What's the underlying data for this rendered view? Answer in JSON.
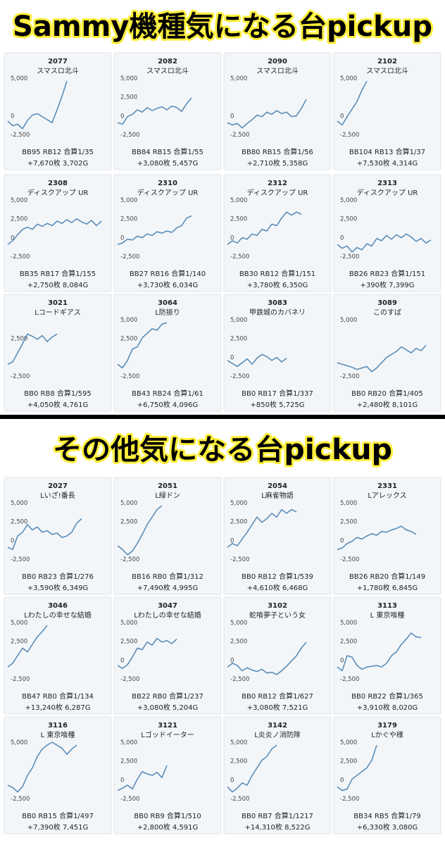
{
  "headings": [
    "Sammy機種気になる台pickup",
    "その他気になる台pickup"
  ],
  "chart_data": [
    {
      "type": "line",
      "title": "2077",
      "subtitle": "スマスロ北斗",
      "ylim": [
        -3000,
        5400
      ],
      "yticks": [
        {
          "value": 5000,
          "label": "5,000"
        },
        0,
        {
          "value": -2500,
          "label": "-2,500"
        }
      ],
      "color": "#5b8db8",
      "values": [
        -300,
        -900,
        -700,
        -1300,
        -200,
        500,
        700,
        300,
        -100,
        -500,
        1200,
        3000,
        5000
      ],
      "annotations": [
        "BB95 RB12 合算1/35",
        "+7,670枚 3,702G"
      ]
    },
    {
      "type": "line",
      "title": "2082",
      "subtitle": "スマスロ北斗",
      "ylim": [
        -3000,
        5400
      ],
      "yticks": [
        {
          "value": 5000,
          "label": "5,000"
        },
        {
          "value": 2500,
          "label": "2,500"
        },
        0,
        {
          "value": -2500,
          "label": "-2,500"
        }
      ],
      "color": "#5b8db8",
      "values": [
        -500,
        -700,
        300,
        600,
        1200,
        900,
        1500,
        1100,
        1400,
        1600,
        1200,
        1700,
        1500,
        1000,
        2000,
        2800
      ],
      "annotations": [
        "BB84 RB15 合算1/55",
        "+3,080枚 5,457G"
      ]
    },
    {
      "type": "line",
      "title": "2090",
      "subtitle": "スマスロ北斗",
      "ylim": [
        -3000,
        5400
      ],
      "yticks": [
        {
          "value": 5000,
          "label": "5,000"
        },
        0,
        {
          "value": -2500,
          "label": "-2,500"
        }
      ],
      "color": "#5b8db8",
      "values": [
        -500,
        -800,
        -600,
        -1200,
        -600,
        -100,
        500,
        300,
        900,
        600,
        1100,
        700,
        900,
        300,
        400,
        1400,
        2600
      ],
      "annotations": [
        "BB80 RB15 合算1/56",
        "+2,710枚 5,358G"
      ]
    },
    {
      "type": "line",
      "title": "2102",
      "subtitle": "スマスロ北斗",
      "ylim": [
        -3000,
        5400
      ],
      "yticks": [
        {
          "value": 5000,
          "label": "5,000"
        },
        0,
        {
          "value": -2500,
          "label": "-2,500"
        }
      ],
      "color": "#5b8db8",
      "values": [
        -300,
        -800,
        300,
        1300,
        2300,
        3800,
        5000
      ],
      "annotations": [
        "BB104 RB13 合算1/37",
        "+7,530枚 4,314G"
      ]
    },
    {
      "type": "line",
      "title": "2308",
      "subtitle": "ディスクアップ UR",
      "ylim": [
        -3000,
        5400
      ],
      "yticks": [
        {
          "value": 5000,
          "label": "5,000"
        },
        {
          "value": 2500,
          "label": "2,500"
        },
        0,
        {
          "value": -2500,
          "label": "-2,500"
        }
      ],
      "color": "#5b8db8",
      "values": [
        -500,
        0,
        800,
        1500,
        1800,
        1500,
        2200,
        1900,
        2300,
        2000,
        2600,
        2300,
        2800,
        2400,
        2900,
        2500,
        2200,
        2700,
        2000,
        2600
      ],
      "annotations": [
        "BB35 RB17 合算1/155",
        "+2,750枚 8,084G"
      ]
    },
    {
      "type": "line",
      "title": "2310",
      "subtitle": "ディスクアップ UR",
      "ylim": [
        -3000,
        5400
      ],
      "yticks": [
        {
          "value": 5000,
          "label": "5,000"
        },
        {
          "value": 2500,
          "label": "2,500"
        },
        0,
        {
          "value": -2500,
          "label": "-2,500"
        }
      ],
      "color": "#5b8db8",
      "values": [
        -500,
        -300,
        200,
        100,
        600,
        400,
        900,
        700,
        1200,
        1000,
        1300,
        1100,
        1700,
        2000,
        3000,
        3300
      ],
      "annotations": [
        "BB27 RB16 合算1/140",
        "+3,730枚 6,034G"
      ]
    },
    {
      "type": "line",
      "title": "2312",
      "subtitle": "ディスクアップ UR",
      "ylim": [
        -3000,
        5400
      ],
      "yticks": [
        {
          "value": 5000,
          "label": "5,000"
        },
        {
          "value": 2500,
          "label": "2,500"
        },
        0,
        {
          "value": -2500,
          "label": "-2,500"
        }
      ],
      "color": "#5b8db8",
      "values": [
        -500,
        0,
        -300,
        400,
        200,
        900,
        700,
        1500,
        1300,
        2200,
        2000,
        3000,
        3800,
        3400,
        3800,
        3500
      ],
      "annotations": [
        "BB30 RB12 合算1/151",
        "+3,780枚 6,350G"
      ]
    },
    {
      "type": "line",
      "title": "2313",
      "subtitle": "ディスクアップ UR",
      "ylim": [
        -3000,
        5400
      ],
      "yticks": [
        {
          "value": 5000,
          "label": "5,000"
        },
        {
          "value": 2500,
          "label": "2,500"
        },
        0,
        {
          "value": -2500,
          "label": "-2,500"
        }
      ],
      "color": "#5b8db8",
      "values": [
        -500,
        -1000,
        -700,
        -1500,
        -900,
        -1200,
        -400,
        -700,
        300,
        0,
        700,
        200,
        800,
        400,
        900,
        500,
        -100,
        300,
        -300,
        100
      ],
      "annotations": [
        "BB26 RB23 合算1/151",
        "+390枚 7,399G"
      ]
    },
    {
      "type": "line",
      "title": "3021",
      "subtitle": "Lコードギアス",
      "ylim": [
        -3000,
        5400
      ],
      "yticks": [
        {
          "value": 2500,
          "label": "2,500"
        },
        {
          "value": -2500,
          "label": "-2,500"
        }
      ],
      "color": "#5b8db8",
      "values": [
        -500,
        -200,
        1000,
        2200,
        3500,
        3200,
        2800,
        3300,
        2500,
        3100,
        3500
      ],
      "annotations": [
        "BB0 RB8 合算1/595",
        "+4,050枚 4,761G"
      ]
    },
    {
      "type": "line",
      "title": "3064",
      "subtitle": "L防振り",
      "ylim": [
        -3000,
        5400
      ],
      "yticks": [
        {
          "value": 5000,
          "label": "5,000"
        },
        {
          "value": 2500,
          "label": "2,500"
        },
        {
          "value": -2500,
          "label": "-2,500"
        }
      ],
      "color": "#5b8db8",
      "values": [
        -500,
        -1000,
        0,
        1500,
        1800,
        3000,
        3600,
        4200,
        4000,
        4800,
        5000
      ],
      "annotations": [
        "BB43 RB24 合算1/61",
        "+6,750枚 4,096G"
      ]
    },
    {
      "type": "line",
      "title": "3083",
      "subtitle": "甲鉄城のカバネリ",
      "ylim": [
        -3000,
        5400
      ],
      "yticks": [
        {
          "value": 5000,
          "label": "5,000"
        },
        {
          "value": 2500,
          "label": "2,500"
        },
        0,
        {
          "value": -2500,
          "label": "-2,500"
        }
      ],
      "color": "#5b8db8",
      "values": [
        0,
        -400,
        -800,
        -300,
        200,
        -500,
        300,
        800,
        500,
        0,
        400,
        -200,
        300
      ],
      "annotations": [
        "BB0 RB17 合算1/337",
        "+850枚 5,725G"
      ]
    },
    {
      "type": "line",
      "title": "3089",
      "subtitle": "このすば",
      "ylim": [
        -3000,
        5400
      ],
      "yticks": [
        {
          "value": 5000,
          "label": "5,000"
        },
        {
          "value": -2500,
          "label": "-2,500"
        }
      ],
      "color": "#5b8db8",
      "values": [
        -300,
        -500,
        -700,
        -900,
        -1200,
        -1000,
        -800,
        -1500,
        -1000,
        -300,
        400,
        800,
        1200,
        1800,
        1400,
        1000,
        1600,
        1300,
        2000
      ],
      "annotations": [
        "BB0 RB20 合算1/405",
        "+2,480枚 8,101G"
      ]
    },
    {
      "type": "line",
      "title": "2027",
      "subtitle": "Lいざ!番長",
      "ylim": [
        -3000,
        5400
      ],
      "yticks": [
        {
          "value": 5000,
          "label": "5,000"
        },
        {
          "value": 2500,
          "label": "2,500"
        },
        0,
        {
          "value": -2500,
          "label": "-2,500"
        }
      ],
      "color": "#5b8db8",
      "values": [
        -500,
        -800,
        1000,
        1500,
        2500,
        1800,
        2200,
        1500,
        1700,
        1200,
        1400,
        800,
        1000,
        1500,
        2700,
        3300
      ],
      "annotations": [
        "BB0 RB23 合算1/276",
        "+3,590枚 6,349G"
      ]
    },
    {
      "type": "line",
      "title": "2051",
      "subtitle": "L緑ドン",
      "ylim": [
        -3000,
        5400
      ],
      "yticks": [
        {
          "value": 5000,
          "label": "5,000"
        },
        {
          "value": 2500,
          "label": "2,500"
        },
        {
          "value": -2500,
          "label": "-2,500"
        }
      ],
      "color": "#5b8db8",
      "values": [
        -300,
        -800,
        -1500,
        -1000,
        0,
        1200,
        2500,
        3500,
        4500,
        5000
      ],
      "annotations": [
        "BB16 RB0 合算1/312",
        "+7,490枚 4,995G"
      ]
    },
    {
      "type": "line",
      "title": "2054",
      "subtitle": "L麻雀物語",
      "ylim": [
        -3000,
        5400
      ],
      "yticks": [
        {
          "value": 5000,
          "label": "5,000"
        },
        {
          "value": 2500,
          "label": "2,500"
        },
        0,
        {
          "value": -2500,
          "label": "-2,500"
        }
      ],
      "color": "#5b8db8",
      "values": [
        -500,
        0,
        -300,
        600,
        1500,
        2500,
        3500,
        2800,
        3300,
        4000,
        3500,
        4500,
        4000,
        4500,
        4200
      ],
      "annotations": [
        "BB0 RB12 合算1/539",
        "+4,610枚 6,468G"
      ]
    },
    {
      "type": "line",
      "title": "2331",
      "subtitle": "Lアレックス",
      "ylim": [
        -3000,
        5400
      ],
      "yticks": [
        {
          "value": 5000,
          "label": "5,000"
        },
        {
          "value": 2500,
          "label": "2,500"
        },
        0,
        {
          "value": -2500,
          "label": "-2,500"
        }
      ],
      "color": "#5b8db8",
      "values": [
        -800,
        -600,
        0,
        300,
        800,
        600,
        1000,
        1300,
        1100,
        1600,
        1500,
        1800,
        2000,
        2300,
        1800,
        1600,
        1200
      ],
      "annotations": [
        "BB26 RB20 合算1/149",
        "+1,780枚 6,845G"
      ]
    },
    {
      "type": "line",
      "title": "3046",
      "subtitle": "Lわたしの幸せな結婚",
      "ylim": [
        -3000,
        5400
      ],
      "yticks": [
        {
          "value": 5000,
          "label": "5,000"
        },
        {
          "value": 2500,
          "label": "2,500"
        },
        {
          "value": -2500,
          "label": "-2,500"
        }
      ],
      "color": "#5b8db8",
      "values": [
        -500,
        0,
        1000,
        2000,
        1500,
        2500,
        3500,
        4200,
        5000
      ],
      "annotations": [
        "BB47 RB0 合算1/134",
        "+13,240枚 6,287G"
      ]
    },
    {
      "type": "line",
      "title": "3047",
      "subtitle": "Lわたしの幸せな結婚",
      "ylim": [
        -3000,
        5400
      ],
      "yticks": [
        {
          "value": 5000,
          "label": "5,000"
        },
        {
          "value": 2500,
          "label": "2,500"
        },
        0,
        {
          "value": -2500,
          "label": "-2,500"
        }
      ],
      "color": "#5b8db8",
      "values": [
        -300,
        -700,
        -200,
        800,
        2000,
        1800,
        2800,
        2400,
        3300,
        2800,
        3000,
        2600,
        3200
      ],
      "annotations": [
        "BB22 RB0 合算1/237",
        "+3,080枚 5,204G"
      ]
    },
    {
      "type": "line",
      "title": "3102",
      "subtitle": "蛇喰夢子という女",
      "ylim": [
        -3000,
        5400
      ],
      "yticks": [
        {
          "value": 5000,
          "label": "5,000"
        },
        {
          "value": 2500,
          "label": "2,500"
        },
        0,
        {
          "value": -2500,
          "label": "-2,500"
        }
      ],
      "color": "#5b8db8",
      "values": [
        -500,
        0,
        -300,
        -1000,
        -600,
        -900,
        -1100,
        -800,
        -1300,
        -1200,
        -1500,
        -1000,
        -400,
        300,
        1000,
        2000,
        2800
      ],
      "annotations": [
        "BB0 RB12 合算1/627",
        "+3,080枚 7,521G"
      ]
    },
    {
      "type": "line",
      "title": "3113",
      "subtitle": "L 東京喰種",
      "ylim": [
        -3000,
        5400
      ],
      "yticks": [
        {
          "value": 5000,
          "label": "5,000"
        },
        {
          "value": 2500,
          "label": "2,500"
        },
        0,
        {
          "value": -2500,
          "label": "-2,500"
        }
      ],
      "color": "#5b8db8",
      "values": [
        -500,
        -1000,
        1000,
        800,
        -300,
        -800,
        -500,
        -400,
        -300,
        -500,
        0,
        1000,
        1500,
        2500,
        3200,
        4000,
        3500,
        3400
      ],
      "annotations": [
        "BB0 RB22 合算1/365",
        "+3,910枚 8,020G"
      ]
    },
    {
      "type": "line",
      "title": "3116",
      "subtitle": "L 東京喰種",
      "ylim": [
        -3000,
        5400
      ],
      "yticks": [
        {
          "value": 5000,
          "label": "5,000"
        },
        {
          "value": -2500,
          "label": "-2,500"
        }
      ],
      "color": "#5b8db8",
      "values": [
        -300,
        -600,
        -1200,
        -500,
        1000,
        2000,
        3500,
        4500,
        5000,
        5400,
        5000,
        4600,
        3800,
        4500,
        5000
      ],
      "annotations": [
        "BB0 RB15 合算1/497",
        "+7,390枚 7,451G"
      ]
    },
    {
      "type": "line",
      "title": "3121",
      "subtitle": "Lゴッドイーター",
      "ylim": [
        -3000,
        5400
      ],
      "yticks": [
        {
          "value": 5000,
          "label": "5,000"
        },
        {
          "value": 2500,
          "label": "2,500"
        },
        0,
        {
          "value": -2500,
          "label": "-2,500"
        }
      ],
      "color": "#5b8db8",
      "values": [
        -1000,
        -700,
        -300,
        -800,
        500,
        1500,
        1200,
        1000,
        1400,
        700,
        2300
      ],
      "annotations": [
        "BB0 RB9 合算1/510",
        "+2,800枚 4,591G"
      ]
    },
    {
      "type": "line",
      "title": "3142",
      "subtitle": "L炎炎ノ消防隊",
      "ylim": [
        -3000,
        5400
      ],
      "yticks": [
        {
          "value": 5000,
          "label": "5,000"
        },
        {
          "value": 2500,
          "label": "2,500"
        },
        0,
        {
          "value": -2500,
          "label": "-2,500"
        }
      ],
      "color": "#5b8db8",
      "values": [
        -500,
        -1200,
        -700,
        0,
        -300,
        1000,
        2000,
        3000,
        3500,
        4500,
        5000
      ],
      "annotations": [
        "BB0 RB7 合算1/1217",
        "+14,310枚 8,522G"
      ]
    },
    {
      "type": "line",
      "title": "3179",
      "subtitle": "Lかぐや様",
      "ylim": [
        -3000,
        5400
      ],
      "yticks": [
        {
          "value": 5000,
          "label": "5,000"
        },
        {
          "value": 2500,
          "label": "2,500"
        },
        0,
        {
          "value": -2500,
          "label": "-2,500"
        }
      ],
      "color": "#5b8db8",
      "values": [
        -500,
        -1000,
        -800,
        500,
        1000,
        1500,
        2000,
        3000,
        5000
      ],
      "annotations": [
        "BB34 RB5 合算1/79",
        "+6,330枚 3,080G"
      ]
    }
  ]
}
